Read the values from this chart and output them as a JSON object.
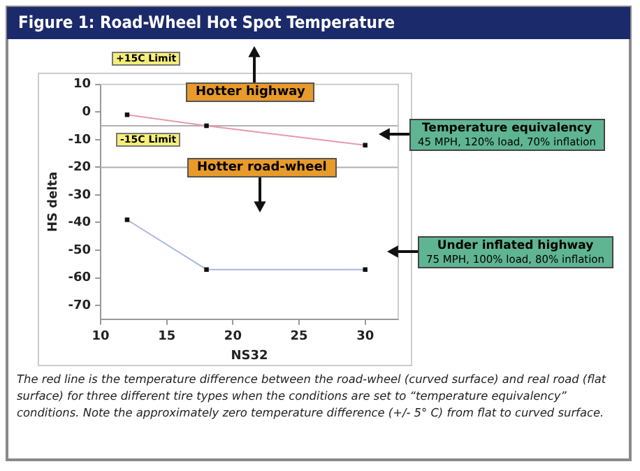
{
  "chart_data": {
    "type": "line",
    "title": "Figure 1: Road-Wheel Hot Spot Temperature",
    "xlabel": "NS32",
    "ylabel": "HS delta",
    "x": [
      12,
      18,
      30
    ],
    "series": [
      {
        "name": "Temperature equivalency",
        "color": "#e89aa6",
        "values": [
          -1,
          -5,
          -12
        ]
      },
      {
        "name": "Under inflated highway",
        "color": "#aab4e0",
        "values": [
          -39,
          -57,
          -57
        ]
      }
    ],
    "xlim": [
      10,
      32.5
    ],
    "xticks": [
      10,
      15,
      20,
      25,
      30
    ],
    "ylim": [
      -75,
      10
    ],
    "yticks": [
      10,
      0,
      -10,
      -20,
      -30,
      -40,
      -50,
      -60,
      -70
    ],
    "ref_lines": [
      {
        "axis": "y",
        "value": -5,
        "color": "#b0b0b0"
      },
      {
        "axis": "y",
        "value": -20,
        "color": "#b0b0b0"
      }
    ],
    "grid": false,
    "legend": "right",
    "marker": "square",
    "line_style": "solid",
    "annotations": [
      "+15C Limit",
      "-15C Limit",
      "Hotter highway",
      "Hotter road-wheel",
      "45 MPH, 120% load, 70% inflation",
      "75 MPH, 100% load, 80% inflation",
      "The red line is the temperature difference between the road-wheel (curved surface) and real road (flat surface) for three different tire types when the conditions are set to “temperature equivalency” conditions. Note the approximately zero temperature difference (+/- 5° C) from flat to curved surface."
    ]
  }
}
